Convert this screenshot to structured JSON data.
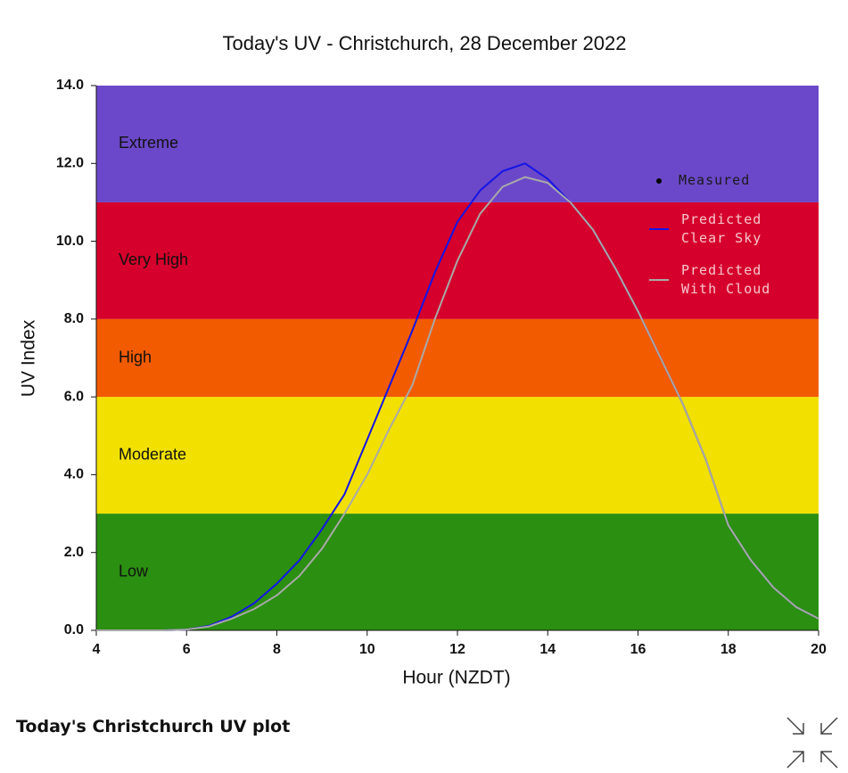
{
  "chart_data": {
    "type": "line",
    "title": "Today's UV - Christchurch, 28 December 2022",
    "x_label": "Hour (NZDT)",
    "y_label": "UV Index",
    "x": [
      4,
      4.5,
      5,
      5.5,
      6,
      6.5,
      7,
      7.5,
      8,
      8.5,
      9,
      9.5,
      10,
      10.5,
      11,
      11.5,
      12,
      12.5,
      13,
      13.5,
      14,
      14.5,
      15,
      15.5,
      16,
      16.5,
      17,
      17.5,
      18,
      18.5,
      19,
      19.5,
      20
    ],
    "series": [
      {
        "name": "Measured",
        "color": "#000000",
        "values": [
          null,
          null,
          null,
          null,
          null,
          null,
          null,
          null,
          null,
          null,
          null,
          null,
          null,
          null,
          null,
          null,
          null,
          null,
          null,
          null,
          null,
          null,
          null,
          null,
          null,
          null,
          null,
          null,
          null,
          null,
          null,
          null,
          null
        ]
      },
      {
        "name": "Predicted Clear Sky",
        "color": "#1414e6",
        "values": [
          0,
          0,
          0,
          0,
          0.02,
          0.12,
          0.35,
          0.7,
          1.2,
          1.8,
          2.6,
          3.5,
          4.9,
          6.3,
          7.7,
          9.2,
          10.5,
          11.3,
          11.8,
          12.0,
          11.6,
          11.0,
          10.3,
          9.3,
          8.2,
          7.0,
          5.8,
          4.4,
          2.7,
          1.8,
          1.1,
          0.6,
          0.3
        ]
      },
      {
        "name": "Predicted With Cloud",
        "color": "#a9a9a9",
        "values": [
          0,
          0,
          0,
          0,
          0.02,
          0.1,
          0.3,
          0.55,
          0.9,
          1.4,
          2.1,
          3.0,
          4.0,
          5.2,
          6.3,
          8.0,
          9.5,
          10.7,
          11.4,
          11.65,
          11.5,
          11.0,
          10.3,
          9.3,
          8.2,
          7.0,
          5.8,
          4.4,
          2.7,
          1.8,
          1.1,
          0.6,
          0.3
        ]
      }
    ],
    "bands": [
      {
        "label": "Low",
        "range": [
          0,
          3
        ],
        "color": "#2b8f12"
      },
      {
        "label": "Moderate",
        "range": [
          3,
          6
        ],
        "color": "#f2e100"
      },
      {
        "label": "High",
        "range": [
          6,
          8
        ],
        "color": "#f35b00"
      },
      {
        "label": "Very High",
        "range": [
          8,
          11
        ],
        "color": "#d5002b"
      },
      {
        "label": "Extreme",
        "range": [
          11,
          14
        ],
        "color": "#6b48c9"
      }
    ],
    "xlim": [
      4,
      20
    ],
    "xticks": [
      4,
      6,
      8,
      10,
      12,
      14,
      16,
      18,
      20
    ],
    "ylim": [
      0,
      14
    ],
    "yticks": [
      {
        "value": 0,
        "label": "0.0"
      },
      {
        "value": 2,
        "label": "2.0"
      },
      {
        "value": 4,
        "label": "4.0"
      },
      {
        "value": 6,
        "label": "6.0"
      },
      {
        "value": 8,
        "label": "8.0"
      },
      {
        "value": 10,
        "label": "10.0"
      },
      {
        "value": 12,
        "label": "12.0"
      },
      {
        "value": 14,
        "label": "14.0"
      }
    ]
  },
  "caption": "Today's Christchurch UV plot"
}
